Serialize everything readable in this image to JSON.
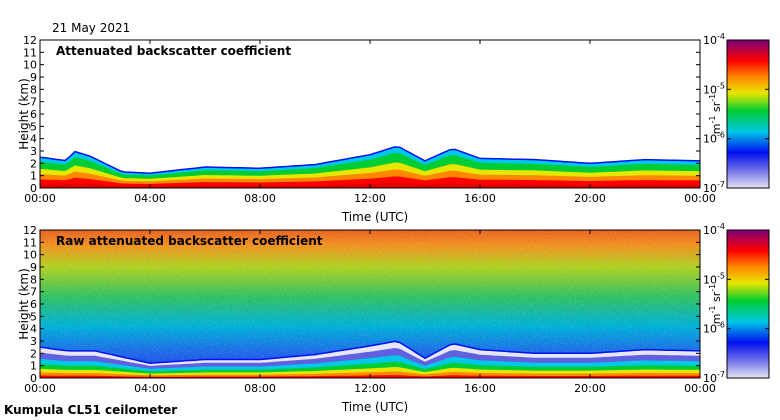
{
  "header": {
    "date": "21 May 2021"
  },
  "footer": {
    "station": "Kumpula CL51 ceilometer"
  },
  "colors": {
    "colormap": [
      "#e6e6f5",
      "#7070e8",
      "#0010f0",
      "#00c8e6",
      "#00cc33",
      "#e6e600",
      "#ff8800",
      "#ff0000",
      "#8c0090",
      "#7a007a"
    ],
    "frame": "#000000"
  },
  "chart_data": [
    {
      "type": "heatmap",
      "title": "Attenuated backscatter coefficient",
      "xlabel": "Time (UTC)",
      "ylabel": "Height (km)",
      "x_ticks": [
        "00:00",
        "04:00",
        "08:00",
        "12:00",
        "16:00",
        "20:00",
        "00:00"
      ],
      "y_ticks": [
        "0",
        "1",
        "2",
        "3",
        "4",
        "5",
        "6",
        "7",
        "8",
        "9",
        "10",
        "11",
        "12"
      ],
      "ylim": [
        0,
        12
      ],
      "xlim_hours": [
        0,
        24
      ],
      "colorbar": {
        "unit_base": "m",
        "unit_base_exp": "-1",
        "unit_sr": "sr",
        "unit_sr_exp": "-1",
        "scale": "log",
        "ticks": [
          {
            "base": "10",
            "exp": "-4",
            "value": 0.0001
          },
          {
            "base": "10",
            "exp": "-5",
            "value": 1e-05
          },
          {
            "base": "10",
            "exp": "-6",
            "value": 1e-06
          },
          {
            "base": "10",
            "exp": "-7",
            "value": 1e-07
          }
        ]
      },
      "layer_top_km": [
        {
          "t": 0.0,
          "h": 2.5
        },
        {
          "t": 1.0,
          "h": 2.2
        },
        {
          "t": 1.2,
          "h": 3.0
        },
        {
          "t": 1.8,
          "h": 2.6
        },
        {
          "t": 3.0,
          "h": 1.3
        },
        {
          "t": 4.0,
          "h": 1.2
        },
        {
          "t": 6.0,
          "h": 1.7
        },
        {
          "t": 8.0,
          "h": 1.6
        },
        {
          "t": 10.0,
          "h": 1.9
        },
        {
          "t": 12.0,
          "h": 2.7
        },
        {
          "t": 13.0,
          "h": 3.4
        },
        {
          "t": 14.0,
          "h": 2.2
        },
        {
          "t": 15.0,
          "h": 3.2
        },
        {
          "t": 16.0,
          "h": 2.4
        },
        {
          "t": 18.0,
          "h": 2.3
        },
        {
          "t": 20.0,
          "h": 2.0
        },
        {
          "t": 22.0,
          "h": 2.3
        },
        {
          "t": 24.0,
          "h": 2.2
        }
      ]
    },
    {
      "type": "heatmap",
      "title": "Raw attenuated backscatter coefficient",
      "xlabel": "Time (UTC)",
      "ylabel": "Height (km)",
      "x_ticks": [
        "00:00",
        "04:00",
        "08:00",
        "12:00",
        "16:00",
        "20:00",
        "00:00"
      ],
      "y_ticks": [
        "0",
        "1",
        "2",
        "3",
        "4",
        "5",
        "6",
        "7",
        "8",
        "9",
        "10",
        "11",
        "12"
      ],
      "ylim": [
        0,
        12
      ],
      "xlim_hours": [
        0,
        24
      ],
      "colorbar": {
        "unit_base": "m",
        "unit_base_exp": "-1",
        "unit_sr": "sr",
        "unit_sr_exp": "-1",
        "scale": "log",
        "ticks": [
          {
            "base": "10",
            "exp": "-4",
            "value": 0.0001
          },
          {
            "base": "10",
            "exp": "-5",
            "value": 1e-05
          },
          {
            "base": "10",
            "exp": "-6",
            "value": 1e-06
          },
          {
            "base": "10",
            "exp": "-7",
            "value": 1e-07
          }
        ]
      },
      "layer_top_km": [
        {
          "t": 0.0,
          "h": 2.5
        },
        {
          "t": 1.0,
          "h": 2.2
        },
        {
          "t": 2.0,
          "h": 2.2
        },
        {
          "t": 4.0,
          "h": 1.2
        },
        {
          "t": 6.0,
          "h": 1.5
        },
        {
          "t": 8.0,
          "h": 1.5
        },
        {
          "t": 10.0,
          "h": 1.9
        },
        {
          "t": 12.0,
          "h": 2.6
        },
        {
          "t": 13.0,
          "h": 3.0
        },
        {
          "t": 14.0,
          "h": 1.6
        },
        {
          "t": 15.0,
          "h": 2.8
        },
        {
          "t": 16.0,
          "h": 2.3
        },
        {
          "t": 18.0,
          "h": 2.0
        },
        {
          "t": 20.0,
          "h": 2.0
        },
        {
          "t": 22.0,
          "h": 2.3
        },
        {
          "t": 24.0,
          "h": 2.2
        }
      ]
    }
  ]
}
